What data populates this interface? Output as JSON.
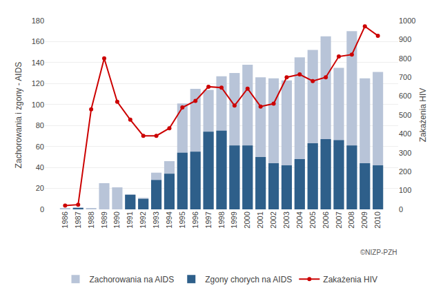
{
  "chart_data": {
    "type": "bar",
    "categories": [
      "1986",
      "1987",
      "1988",
      "1989",
      "1990",
      "1991",
      "1992",
      "1993",
      "1994",
      "1995",
      "1996",
      "1997",
      "1998",
      "1999",
      "2000",
      "2001",
      "2002",
      "2003",
      "2004",
      "2005",
      "2006",
      "2007",
      "2008",
      "2009",
      "2010"
    ],
    "series": [
      {
        "name": "Zachorowania na AIDS",
        "type": "bar",
        "color": "#b8c4d8",
        "values": [
          1,
          2,
          1,
          25,
          21,
          14,
          11,
          35,
          46,
          101,
          115,
          114,
          127,
          130,
          138,
          126,
          125,
          123,
          145,
          152,
          165,
          135,
          170,
          125,
          131
        ]
      },
      {
        "name": "Zgony chorych na AIDS",
        "type": "bar",
        "color": "#2e5f8a",
        "values": [
          0,
          1,
          0,
          0,
          0,
          14,
          10,
          28,
          34,
          54,
          55,
          74,
          75,
          61,
          61,
          50,
          44,
          42,
          48,
          63,
          67,
          66,
          61,
          44,
          42
        ]
      },
      {
        "name": "Zakażenia HIV",
        "type": "line",
        "color": "#cc0000",
        "marker": "circle",
        "axis": "y2",
        "values": [
          20,
          25,
          530,
          800,
          570,
          475,
          390,
          390,
          430,
          540,
          575,
          650,
          645,
          550,
          640,
          545,
          560,
          700,
          715,
          680,
          700,
          810,
          820,
          970,
          920
        ]
      }
    ],
    "ylabel": "Zachorowania i zgony - AIDS",
    "y2label": "Zakażenia HIV",
    "ylim": [
      0,
      180
    ],
    "yticks": [
      0,
      20,
      40,
      60,
      80,
      100,
      120,
      140,
      160,
      180
    ],
    "y2lim": [
      0,
      1000
    ],
    "y2ticks": [
      0,
      100,
      200,
      300,
      400,
      500,
      600,
      700,
      800,
      900,
      1000
    ],
    "grid": true,
    "stacked": false,
    "legend": "bottom",
    "annotations": [
      "©NIZP-PZH"
    ]
  }
}
